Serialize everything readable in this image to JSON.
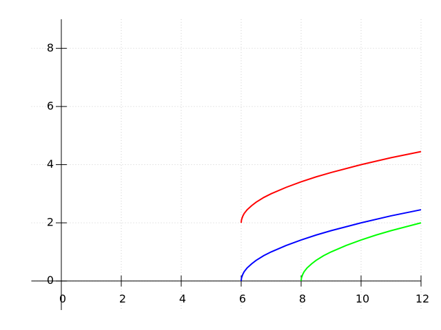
{
  "chart_data": {
    "type": "line",
    "xlim": [
      -1,
      12
    ],
    "ylim": [
      -1,
      9
    ],
    "xticks": [
      0,
      2,
      4,
      6,
      8,
      10,
      12
    ],
    "yticks": [
      0,
      2,
      4,
      6,
      8
    ],
    "grid": true,
    "series": [
      {
        "color": "#ff0000",
        "x": [
          6,
          6.01,
          6.05,
          6.1,
          6.2,
          6.35,
          6.5,
          6.75,
          7,
          7.5,
          8,
          8.5,
          9,
          10,
          11,
          12
        ],
        "values": [
          2,
          2.1,
          2.22,
          2.32,
          2.45,
          2.59,
          2.71,
          2.87,
          3,
          3.22,
          3.41,
          3.58,
          3.73,
          4,
          4.24,
          4.45
        ]
      },
      {
        "color": "#0000ff",
        "x": [
          6,
          6.01,
          6.05,
          6.1,
          6.2,
          6.35,
          6.5,
          6.75,
          7,
          7.5,
          8,
          8.5,
          9,
          10,
          11,
          12
        ],
        "values": [
          0,
          0.1,
          0.22,
          0.32,
          0.45,
          0.59,
          0.71,
          0.87,
          1,
          1.22,
          1.41,
          1.58,
          1.73,
          2,
          2.24,
          2.45
        ]
      },
      {
        "color": "#00ff00",
        "x": [
          8,
          8.01,
          8.05,
          8.1,
          8.2,
          8.35,
          8.5,
          8.75,
          9,
          9.5,
          10,
          10.5,
          11,
          12
        ],
        "values": [
          0,
          0.1,
          0.22,
          0.32,
          0.45,
          0.59,
          0.71,
          0.87,
          1,
          1.22,
          1.41,
          1.58,
          1.73,
          2
        ]
      }
    ]
  }
}
